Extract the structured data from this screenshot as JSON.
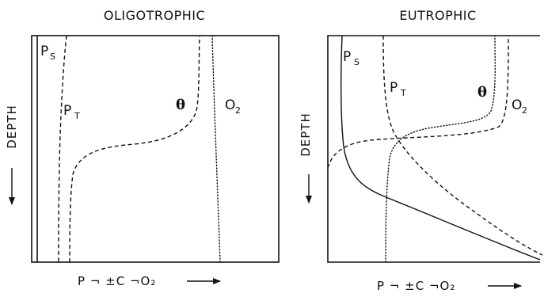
{
  "panels": [
    {
      "id": "oligotrophic",
      "title": "OLIGOTROPHIC",
      "y_axis_label": "DEPTH",
      "x_axis_label": "P ¬ ±C ¬O₂",
      "curves": [
        {
          "base": "P",
          "sub": "S",
          "style": "dashed"
        },
        {
          "base": "P",
          "sub": "T",
          "style": "dashed"
        },
        {
          "base": "θ",
          "sub": "",
          "style": "dashed"
        },
        {
          "base": "O",
          "sub": "2",
          "style": "dotted"
        }
      ]
    },
    {
      "id": "eutrophic",
      "title": "EUTROPHIC",
      "y_axis_label": "DEPTH",
      "x_axis_label": "P ¬ ±C ¬O₂",
      "curves": [
        {
          "base": "P",
          "sub": "S",
          "style": "solid"
        },
        {
          "base": "P",
          "sub": "T",
          "style": "dashed"
        },
        {
          "base": "θ",
          "sub": "",
          "style": "dotted"
        },
        {
          "base": "O",
          "sub": "2",
          "style": "dashed"
        }
      ]
    }
  ]
}
